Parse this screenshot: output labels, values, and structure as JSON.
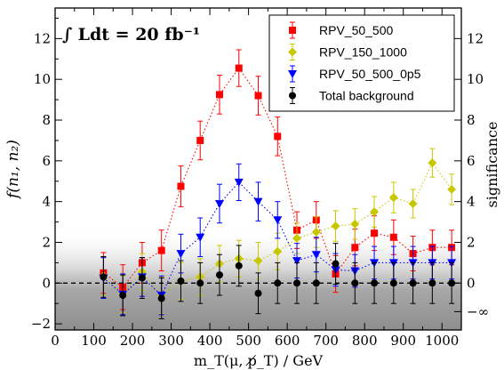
{
  "chart_data": {
    "type": "scatter",
    "annotation": "∫ Ldt = 20 fb⁻¹",
    "xlabel": "m_T(μ, p̸_T)  /  GeV",
    "ylabel": "f(n₁, n₂)",
    "y2label": "significance",
    "xlim": [
      0,
      1050
    ],
    "ylim": [
      -2.3,
      13.5
    ],
    "x_ticks": [
      0,
      100,
      200,
      300,
      400,
      500,
      600,
      700,
      800,
      900,
      1000
    ],
    "y_ticks": [
      -2,
      0,
      2,
      4,
      6,
      8,
      10,
      12
    ],
    "y2_ticks": [
      {
        "value": 12,
        "label": "12"
      },
      {
        "value": 10,
        "label": "10"
      },
      {
        "value": 8,
        "label": "8"
      },
      {
        "value": 6,
        "label": "6"
      },
      {
        "value": 4,
        "label": "4"
      },
      {
        "value": 2,
        "label": "2"
      },
      {
        "value": 0,
        "label": "0"
      },
      {
        "value": -1.4,
        "label": "−∞"
      }
    ],
    "legend_position": "top-right",
    "grid": false,
    "x": [
      125,
      175,
      225,
      275,
      325,
      375,
      425,
      475,
      525,
      575,
      625,
      675,
      725,
      775,
      825,
      875,
      925,
      975,
      1025
    ],
    "series": [
      {
        "name": "RPV_50_500",
        "color": "#ff0000",
        "marker": "square",
        "values": [
          0.5,
          -0.2,
          1.0,
          1.6,
          4.75,
          7.0,
          9.25,
          10.55,
          9.2,
          7.2,
          2.6,
          3.1,
          0.45,
          1.75,
          2.45,
          2.25,
          1.45,
          1.75,
          1.75
        ],
        "errors": [
          1.0,
          1.1,
          1.0,
          1.0,
          1.0,
          0.95,
          0.95,
          0.9,
          0.95,
          0.95,
          0.9,
          0.9,
          0.9,
          0.9,
          0.85,
          0.85,
          0.85,
          0.85,
          0.85
        ]
      },
      {
        "name": "RPV_150_1000",
        "color": "#c8c800",
        "marker": "diamond",
        "values": [
          0.35,
          -0.55,
          0.55,
          -0.6,
          0.1,
          0.3,
          0.95,
          1.2,
          1.1,
          1.55,
          2.2,
          2.5,
          2.8,
          2.9,
          3.5,
          4.2,
          3.9,
          5.9,
          4.6
        ],
        "errors": [
          0.95,
          0.9,
          0.9,
          0.9,
          0.9,
          0.9,
          0.9,
          0.9,
          0.9,
          0.9,
          0.75,
          0.75,
          0.75,
          0.75,
          0.75,
          0.75,
          0.7,
          0.7,
          0.75
        ]
      },
      {
        "name": "RPV_50_500_0p5",
        "color": "#0000ff",
        "marker": "triangle-down",
        "values": [
          0.25,
          -0.55,
          0.3,
          -0.6,
          1.45,
          2.25,
          3.9,
          4.95,
          4.0,
          3.1,
          1.1,
          1.4,
          0.65,
          0.6,
          1.0,
          1.0,
          1.0,
          1.0,
          1.0
        ],
        "errors": [
          1.0,
          1.0,
          0.95,
          0.95,
          0.95,
          0.95,
          0.95,
          0.9,
          0.95,
          0.9,
          0.85,
          0.85,
          0.8,
          0.8,
          0.8,
          0.8,
          0.8,
          0.8,
          0.8
        ]
      },
      {
        "name": "Total background",
        "color": "#000000",
        "marker": "circle",
        "values": [
          0.3,
          -0.6,
          0.25,
          -0.75,
          0.1,
          0.0,
          0.4,
          0.85,
          -0.5,
          0.0,
          0.0,
          0.0,
          0.95,
          0.0,
          0.0,
          0.0,
          0.0,
          0.0,
          0.0
        ],
        "errors": [
          1.0,
          1.0,
          1.0,
          1.0,
          1.0,
          1.0,
          1.0,
          1.0,
          1.0,
          1.0,
          1.0,
          1.0,
          1.0,
          1.0,
          1.0,
          1.0,
          1.0,
          1.0,
          1.0
        ]
      }
    ]
  }
}
